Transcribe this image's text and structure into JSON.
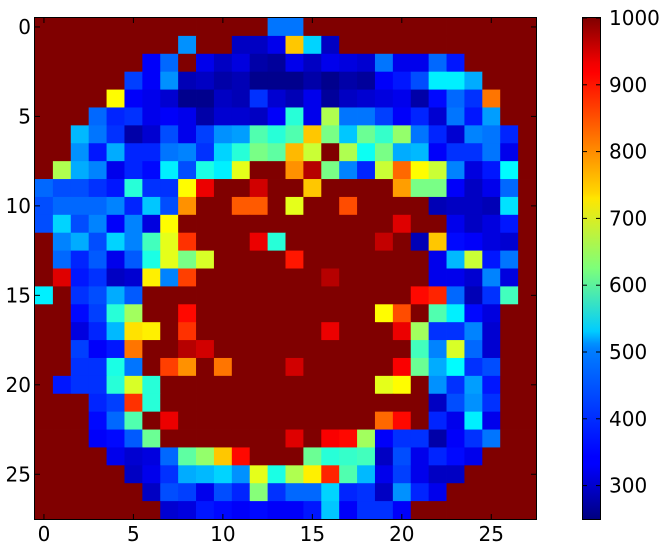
{
  "chart_data": {
    "type": "heatmap",
    "title": "",
    "xlabel": "",
    "ylabel": "",
    "rows": 28,
    "cols": 28,
    "x_ticks": [
      0,
      5,
      10,
      15,
      20,
      25
    ],
    "y_ticks": [
      0,
      5,
      10,
      15,
      20,
      25
    ],
    "colormap": "jet",
    "colorbar": {
      "vmin": 250,
      "vmax": 1000,
      "ticks": [
        300,
        400,
        500,
        600,
        700,
        800,
        900,
        1000
      ]
    },
    "values": [
      [
        1000,
        1000,
        1000,
        1000,
        1000,
        1000,
        1000,
        1000,
        1000,
        1000,
        1000,
        1000,
        1000,
        430,
        430,
        1000,
        1000,
        1000,
        1000,
        1000,
        1000,
        1000,
        1000,
        1000,
        1000,
        1000,
        1000,
        1000
      ],
      [
        1000,
        1000,
        1000,
        1000,
        1000,
        1000,
        1000,
        1000,
        450,
        1000,
        1000,
        300,
        300,
        330,
        760,
        500,
        300,
        1000,
        1000,
        1000,
        1000,
        1000,
        1000,
        1000,
        1000,
        1000,
        1000,
        1000
      ],
      [
        1000,
        1000,
        1000,
        1000,
        1000,
        1000,
        340,
        420,
        1000,
        330,
        300,
        320,
        280,
        270,
        330,
        300,
        330,
        320,
        310,
        430,
        330,
        330,
        420,
        360,
        1000,
        1000,
        1000,
        1000
      ],
      [
        1000,
        1000,
        1000,
        1000,
        1000,
        390,
        340,
        450,
        290,
        300,
        280,
        290,
        260,
        260,
        260,
        280,
        260,
        280,
        270,
        340,
        360,
        400,
        520,
        520,
        470,
        1000,
        1000,
        1000
      ],
      [
        1000,
        1000,
        1000,
        1000,
        720,
        340,
        330,
        310,
        260,
        260,
        300,
        290,
        380,
        310,
        290,
        330,
        270,
        300,
        310,
        320,
        330,
        280,
        350,
        420,
        380,
        820,
        1000,
        1000
      ],
      [
        1000,
        1000,
        1000,
        420,
        370,
        380,
        330,
        340,
        330,
        280,
        310,
        310,
        300,
        340,
        560,
        330,
        660,
        430,
        430,
        390,
        340,
        370,
        310,
        430,
        360,
        460,
        1000,
        1000
      ],
      [
        1000,
        1000,
        480,
        430,
        380,
        280,
        310,
        400,
        330,
        390,
        450,
        460,
        590,
        560,
        590,
        760,
        620,
        490,
        610,
        570,
        640,
        430,
        370,
        310,
        440,
        430,
        370,
        1000
      ],
      [
        1000,
        1000,
        450,
        360,
        470,
        370,
        370,
        430,
        440,
        380,
        500,
        560,
        620,
        600,
        770,
        680,
        1000,
        660,
        540,
        620,
        470,
        480,
        340,
        380,
        380,
        430,
        330,
        1000
      ],
      [
        1000,
        660,
        470,
        440,
        330,
        370,
        350,
        520,
        400,
        550,
        520,
        700,
        1000,
        1000,
        800,
        960,
        620,
        440,
        370,
        680,
        830,
        720,
        680,
        440,
        320,
        360,
        530,
        1000
      ],
      [
        420,
        400,
        400,
        380,
        360,
        560,
        380,
        380,
        720,
        920,
        1000,
        1000,
        940,
        1000,
        1000,
        760,
        1000,
        1000,
        1000,
        1000,
        790,
        620,
        620,
        340,
        300,
        330,
        420,
        1000
      ],
      [
        400,
        420,
        420,
        420,
        440,
        370,
        490,
        400,
        800,
        1000,
        1000,
        840,
        840,
        1000,
        700,
        1000,
        1000,
        850,
        1000,
        1000,
        1000,
        1000,
        290,
        300,
        300,
        290,
        510,
        1000
      ],
      [
        400,
        500,
        400,
        440,
        340,
        440,
        320,
        720,
        1000,
        1000,
        1000,
        1000,
        1000,
        1000,
        1000,
        1000,
        1000,
        1000,
        1000,
        1000,
        930,
        1000,
        1000,
        330,
        300,
        320,
        360,
        1000
      ],
      [
        1000,
        440,
        470,
        400,
        500,
        440,
        580,
        700,
        870,
        1000,
        1000,
        1000,
        920,
        560,
        1000,
        1000,
        1000,
        1000,
        1000,
        950,
        1000,
        290,
        760,
        350,
        340,
        320,
        310,
        1000
      ],
      [
        1000,
        420,
        370,
        410,
        330,
        410,
        550,
        700,
        620,
        690,
        1000,
        1000,
        1000,
        1000,
        890,
        1000,
        1000,
        1000,
        1000,
        1000,
        1000,
        1000,
        330,
        480,
        680,
        360,
        430,
        1000
      ],
      [
        1000,
        930,
        360,
        380,
        300,
        310,
        730,
        440,
        860,
        1000,
        1000,
        1000,
        1000,
        1000,
        1000,
        1000,
        960,
        1000,
        1000,
        1000,
        1000,
        1000,
        330,
        330,
        310,
        440,
        320,
        1000
      ],
      [
        520,
        1000,
        380,
        400,
        470,
        410,
        1000,
        1000,
        1000,
        1000,
        1000,
        1000,
        1000,
        1000,
        1000,
        1000,
        1000,
        1000,
        1000,
        1000,
        1000,
        900,
        880,
        420,
        290,
        380,
        580,
        1000
      ],
      [
        1000,
        1000,
        350,
        390,
        560,
        650,
        1000,
        1000,
        900,
        1000,
        1000,
        1000,
        1000,
        1000,
        1000,
        1000,
        1000,
        1000,
        1000,
        720,
        850,
        1000,
        590,
        520,
        350,
        320,
        1000,
        1000
      ],
      [
        1000,
        1000,
        320,
        370,
        480,
        740,
        730,
        1000,
        870,
        1000,
        1000,
        1000,
        1000,
        1000,
        1000,
        1000,
        920,
        1000,
        1000,
        1000,
        920,
        650,
        380,
        380,
        440,
        310,
        1000,
        1000
      ],
      [
        1000,
        1000,
        390,
        340,
        360,
        820,
        1000,
        1000,
        960,
        940,
        1000,
        1000,
        1000,
        1000,
        1000,
        1000,
        1000,
        1000,
        1000,
        1000,
        1000,
        580,
        440,
        690,
        420,
        310,
        1000,
        1000
      ],
      [
        1000,
        1000,
        380,
        380,
        550,
        430,
        1000,
        860,
        800,
        1000,
        820,
        1000,
        1000,
        1000,
        940,
        1000,
        1000,
        1000,
        1000,
        1000,
        910,
        610,
        470,
        530,
        380,
        400,
        1000,
        1000
      ],
      [
        1000,
        360,
        380,
        380,
        560,
        690,
        560,
        1000,
        1000,
        1000,
        1000,
        1000,
        1000,
        1000,
        1000,
        1000,
        1000,
        1000,
        1000,
        700,
        720,
        1000,
        450,
        380,
        460,
        360,
        1000,
        1000
      ],
      [
        1000,
        1000,
        1000,
        370,
        390,
        870,
        560,
        1000,
        1000,
        1000,
        1000,
        1000,
        1000,
        1000,
        1000,
        1000,
        1000,
        1000,
        1000,
        1000,
        1000,
        1000,
        300,
        400,
        450,
        380,
        1000,
        1000
      ],
      [
        1000,
        1000,
        1000,
        350,
        420,
        590,
        1000,
        920,
        1000,
        1000,
        1000,
        1000,
        1000,
        1000,
        1000,
        1000,
        1000,
        1000,
        1000,
        830,
        900,
        1000,
        370,
        330,
        520,
        330,
        1000,
        1000
      ],
      [
        1000,
        1000,
        1000,
        340,
        350,
        410,
        610,
        1000,
        1000,
        1000,
        1000,
        1000,
        1000,
        1000,
        930,
        1000,
        910,
        900,
        650,
        340,
        380,
        380,
        280,
        340,
        380,
        430,
        1000,
        1000
      ],
      [
        1000,
        1000,
        1000,
        1000,
        330,
        310,
        320,
        420,
        600,
        640,
        760,
        900,
        1000,
        1000,
        1000,
        610,
        560,
        570,
        580,
        300,
        400,
        330,
        370,
        350,
        330,
        1000,
        1000,
        1000
      ],
      [
        1000,
        1000,
        1000,
        1000,
        1000,
        300,
        330,
        380,
        470,
        480,
        500,
        450,
        700,
        550,
        660,
        730,
        880,
        590,
        480,
        330,
        390,
        330,
        300,
        300,
        1000,
        1000,
        1000,
        1000
      ],
      [
        1000,
        1000,
        1000,
        1000,
        1000,
        1000,
        300,
        400,
        390,
        330,
        400,
        370,
        630,
        380,
        420,
        420,
        500,
        370,
        380,
        300,
        450,
        370,
        330,
        1000,
        1000,
        1000,
        1000,
        1000
      ],
      [
        1000,
        1000,
        1000,
        1000,
        1000,
        1000,
        1000,
        310,
        320,
        360,
        350,
        340,
        350,
        340,
        340,
        360,
        490,
        340,
        380,
        380,
        340,
        1000,
        1000,
        1000,
        1000,
        1000,
        1000,
        1000
      ]
    ]
  }
}
